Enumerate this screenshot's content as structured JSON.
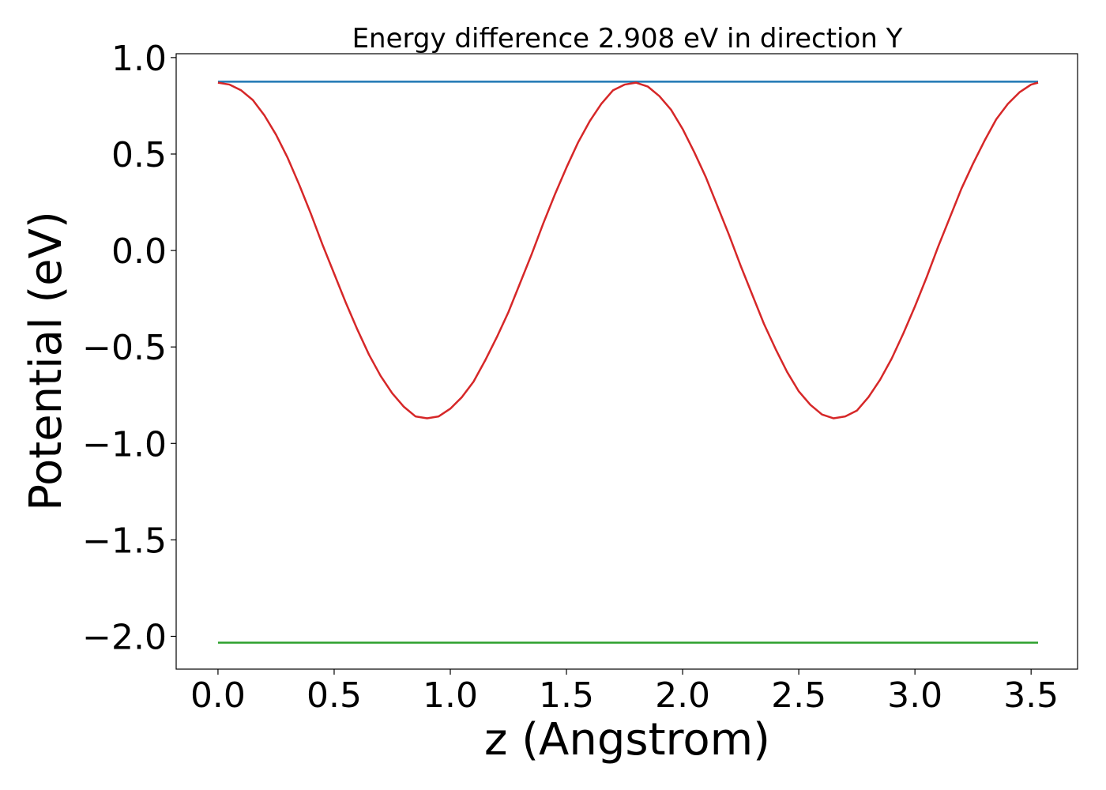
{
  "chart_data": {
    "type": "line",
    "title": "Energy difference 2.908 eV in direction Y",
    "xlabel": "z (Angstrom)",
    "ylabel": "Potential (eV)",
    "xlim": [
      -0.18,
      3.7
    ],
    "ylim": [
      -2.17,
      1.02
    ],
    "xticks": [
      0.0,
      0.5,
      1.0,
      1.5,
      2.0,
      2.5,
      3.0,
      3.5
    ],
    "xtick_labels": [
      "0.0",
      "0.5",
      "1.0",
      "1.5",
      "2.0",
      "2.5",
      "3.0",
      "3.5"
    ],
    "yticks": [
      1.0,
      0.5,
      0.0,
      -0.5,
      -1.0,
      -1.5,
      -2.0
    ],
    "ytick_labels": [
      "1.0",
      "0.5",
      "0.0",
      "−0.5",
      "−1.0",
      "−1.5",
      "−2.0"
    ],
    "grid": false,
    "series": [
      {
        "color": "#1f77b4",
        "x": [
          0.0,
          3.53
        ],
        "y": [
          0.875,
          0.875
        ]
      },
      {
        "color": "#d62728",
        "x": [
          0.0,
          0.05,
          0.1,
          0.15,
          0.2,
          0.25,
          0.3,
          0.35,
          0.4,
          0.45,
          0.5,
          0.55,
          0.6,
          0.65,
          0.7,
          0.75,
          0.8,
          0.85,
          0.9,
          0.95,
          1.0,
          1.05,
          1.1,
          1.15,
          1.2,
          1.25,
          1.3,
          1.35,
          1.4,
          1.45,
          1.5,
          1.55,
          1.6,
          1.65,
          1.7,
          1.75,
          1.8,
          1.85,
          1.9,
          1.95,
          2.0,
          2.05,
          2.1,
          2.15,
          2.2,
          2.25,
          2.3,
          2.35,
          2.4,
          2.45,
          2.5,
          2.55,
          2.6,
          2.65,
          2.7,
          2.75,
          2.8,
          2.85,
          2.9,
          2.95,
          3.0,
          3.05,
          3.1,
          3.15,
          3.2,
          3.25,
          3.3,
          3.35,
          3.4,
          3.45,
          3.5,
          3.53
        ],
        "y": [
          0.87,
          0.86,
          0.83,
          0.78,
          0.7,
          0.6,
          0.48,
          0.34,
          0.19,
          0.03,
          -0.12,
          -0.27,
          -0.41,
          -0.54,
          -0.65,
          -0.74,
          -0.81,
          -0.86,
          -0.87,
          -0.86,
          -0.82,
          -0.76,
          -0.68,
          -0.57,
          -0.45,
          -0.32,
          -0.17,
          -0.02,
          0.14,
          0.29,
          0.43,
          0.56,
          0.67,
          0.76,
          0.83,
          0.86,
          0.87,
          0.85,
          0.8,
          0.73,
          0.63,
          0.51,
          0.38,
          0.23,
          0.08,
          -0.08,
          -0.23,
          -0.38,
          -0.51,
          -0.63,
          -0.73,
          -0.8,
          -0.85,
          -0.87,
          -0.86,
          -0.83,
          -0.76,
          -0.67,
          -0.56,
          -0.43,
          -0.29,
          -0.14,
          0.02,
          0.17,
          0.32,
          0.45,
          0.57,
          0.68,
          0.76,
          0.82,
          0.86,
          0.87
        ]
      },
      {
        "color": "#2ca02c",
        "x": [
          0.0,
          3.53
        ],
        "y": [
          -2.033,
          -2.033
        ]
      }
    ]
  }
}
